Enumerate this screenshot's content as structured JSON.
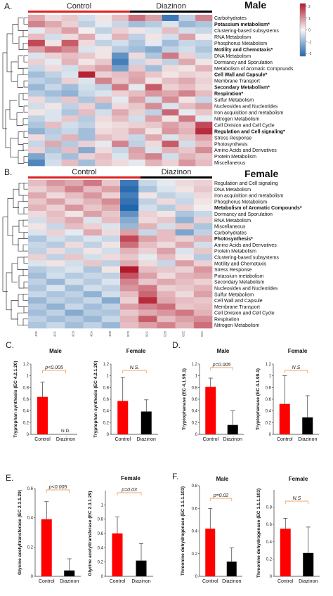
{
  "palette": {
    "neg": "#2166ac",
    "mid": "#f7f7f7",
    "pos": "#b2182b",
    "control_bar": "#ff0000",
    "diazinon_bar": "#000000",
    "sig_bracket": "#f4a460"
  },
  "colorbar_ticks": [
    "2",
    "1",
    "0",
    "-1",
    "-2"
  ],
  "chart_data": [
    {
      "type": "heatmap",
      "panel": "A.",
      "sex": "Male",
      "group_labels": [
        "Control",
        "Diazinon"
      ],
      "column_labels": [],
      "rows": [
        {
          "label": "Carbohydrates",
          "bold": false
        },
        {
          "label": "Potassium metabolism*",
          "bold": true
        },
        {
          "label": "Clustering-based subsystems",
          "bold": false
        },
        {
          "label": "RNA Metabolism",
          "bold": false
        },
        {
          "label": "Phosphorus Metabolism",
          "bold": false
        },
        {
          "label": "Motility and Chemotaxis*",
          "bold": true
        },
        {
          "label": "DNA Metabolism",
          "bold": false
        },
        {
          "label": "Dormancy and Sporulation",
          "bold": false
        },
        {
          "label": "Metabolism of Aromatic Compounds",
          "bold": false
        },
        {
          "label": "Cell Wall and Capsule*",
          "bold": true
        },
        {
          "label": "Membrane Transport",
          "bold": false
        },
        {
          "label": "Secondary Metabolism*",
          "bold": true
        },
        {
          "label": "Respiration*",
          "bold": true
        },
        {
          "label": "Sulfur Metabolism",
          "bold": false
        },
        {
          "label": "Nucleosides and Nucleotides",
          "bold": false
        },
        {
          "label": "Iron acquisition and metabolism",
          "bold": false
        },
        {
          "label": "Nitrogen Metabolism",
          "bold": false
        },
        {
          "label": "Cell Division and Cell Cycle",
          "bold": false
        },
        {
          "label": "Regulation and Cell signaling*",
          "bold": true
        },
        {
          "label": "Stress Response",
          "bold": false
        },
        {
          "label": "Photosynthesis",
          "bold": false
        },
        {
          "label": "Amino Acids and Derivatives",
          "bold": false
        },
        {
          "label": "Protein Metabolism",
          "bold": false
        },
        {
          "label": "Miscellaneous",
          "bold": false
        }
      ],
      "values": [
        [
          0.8,
          0.3,
          0.5,
          -0.4,
          0.2,
          0.6,
          1.4,
          0.9,
          -2.0,
          -0.6,
          1.2
        ],
        [
          1.2,
          0.8,
          0.4,
          -0.6,
          -0.2,
          -0.5,
          -0.9,
          -0.7,
          -0.3,
          -1.0,
          -0.8
        ],
        [
          -0.2,
          0.5,
          0.9,
          0.1,
          -0.6,
          0.4,
          0.2,
          -0.3,
          0.6,
          -0.4,
          -0.5
        ],
        [
          0.6,
          -0.4,
          0.3,
          0.8,
          -0.2,
          0.7,
          -0.6,
          0.2,
          -0.4,
          0.9,
          0.1
        ],
        [
          1.8,
          0.2,
          1.6,
          0.3,
          -0.6,
          -0.4,
          -0.8,
          -0.2,
          -0.9,
          -0.5,
          -0.6
        ],
        [
          0.9,
          1.4,
          1.1,
          -0.3,
          0.2,
          -0.7,
          -0.9,
          -1.2,
          -0.6,
          -0.4,
          -0.8
        ],
        [
          -0.3,
          0.4,
          0.6,
          0.5,
          0.2,
          -1.6,
          0.3,
          -0.8,
          1.3,
          0.4,
          -0.5
        ],
        [
          0.4,
          -0.2,
          0.7,
          0.2,
          0.5,
          -1.9,
          -0.5,
          0.3,
          -0.6,
          0.8,
          0.2
        ],
        [
          -0.5,
          0.3,
          -0.4,
          0.6,
          0.9,
          -1.4,
          0.5,
          -0.9,
          0.3,
          0.2,
          0.7
        ],
        [
          -0.9,
          -0.6,
          -0.3,
          2.2,
          0.4,
          0.6,
          0.8,
          0.5,
          0.2,
          0.4,
          0.3
        ],
        [
          -0.6,
          -0.8,
          0.4,
          -0.3,
          1.2,
          0.5,
          0.9,
          0.2,
          0.6,
          0.8,
          0.4
        ],
        [
          -1.0,
          -0.5,
          -0.9,
          -0.4,
          -0.6,
          1.3,
          -0.2,
          1.6,
          0.4,
          0.6,
          0.3
        ],
        [
          -0.7,
          -0.9,
          -1.1,
          -0.5,
          -0.3,
          0.4,
          0.6,
          1.0,
          0.8,
          1.2,
          0.6
        ],
        [
          0.3,
          -0.6,
          0.5,
          -0.8,
          0.6,
          -0.2,
          0.9,
          -0.4,
          1.1,
          0.2,
          -0.5
        ],
        [
          -0.4,
          0.2,
          -0.6,
          0.4,
          -0.9,
          0.3,
          0.5,
          1.1,
          -0.3,
          0.6,
          0.9
        ],
        [
          0.2,
          -0.3,
          -0.8,
          0.6,
          -0.4,
          0.8,
          0.4,
          -0.6,
          1.5,
          -0.2,
          0.5
        ],
        [
          -0.6,
          -0.3,
          0.5,
          -0.7,
          0.3,
          0.6,
          -0.4,
          0.9,
          0.2,
          1.3,
          -0.2
        ],
        [
          -0.8,
          0.6,
          -0.4,
          -0.6,
          0.2,
          0.3,
          0.4,
          0.5,
          0.9,
          0.6,
          1.8
        ],
        [
          -1.1,
          -0.7,
          -0.5,
          -0.9,
          0.3,
          0.4,
          0.8,
          0.2,
          1.0,
          0.7,
          2.1
        ],
        [
          0.3,
          -0.6,
          0.7,
          -0.9,
          0.6,
          0.4,
          -0.5,
          0.8,
          -0.3,
          0.5,
          0.9
        ],
        [
          -0.5,
          0.8,
          -0.7,
          0.4,
          -0.2,
          1.2,
          -0.6,
          0.3,
          1.6,
          -0.4,
          0.6
        ],
        [
          0.4,
          -0.8,
          0.6,
          -1.2,
          0.3,
          -0.5,
          0.9,
          -0.3,
          0.7,
          0.5,
          1.1
        ],
        [
          -1.3,
          -0.5,
          -0.9,
          0.4,
          0.6,
          -0.3,
          0.8,
          1.2,
          -0.4,
          0.7,
          0.5
        ],
        [
          -1.8,
          -0.4,
          0.6,
          -0.9,
          0.5,
          0.3,
          -0.2,
          0.7,
          0.4,
          1.0,
          0.6
        ]
      ]
    },
    {
      "type": "heatmap",
      "panel": "B.",
      "sex": "Female",
      "group_labels": [
        "Control",
        "Diazinon"
      ],
      "column_labels": [
        "42E",
        "42C",
        "42D",
        "42A",
        "42B",
        "02D",
        "02C",
        "02B",
        "02E",
        "02A"
      ],
      "rows": [
        {
          "label": "Regulation and Cell signaling",
          "bold": false
        },
        {
          "label": "DNA Metabolism",
          "bold": false
        },
        {
          "label": "Iron acquisition and metabolism",
          "bold": false
        },
        {
          "label": "Phosphorus Metabolism",
          "bold": false
        },
        {
          "label": "Metabolism of Aromatic Compounds*",
          "bold": true
        },
        {
          "label": "Dormancy and Sporulation",
          "bold": false
        },
        {
          "label": "RNA Metabolism",
          "bold": false
        },
        {
          "label": "Miscellaneous",
          "bold": false
        },
        {
          "label": "Carbohydrates",
          "bold": false
        },
        {
          "label": "Photosynthesis*",
          "bold": true
        },
        {
          "label": "Amino Acids and Derivatives",
          "bold": false
        },
        {
          "label": "Protein Metabolism",
          "bold": false
        },
        {
          "label": "Clustering-based subsystems",
          "bold": false
        },
        {
          "label": "Motility and Chemotaxis",
          "bold": false
        },
        {
          "label": "Stress Response",
          "bold": false
        },
        {
          "label": "Potassium metabolism",
          "bold": false
        },
        {
          "label": "Secondary Metabolism",
          "bold": false
        },
        {
          "label": "Nucleosides and Nucleotides",
          "bold": false
        },
        {
          "label": "Sulfur Metabolism",
          "bold": false
        },
        {
          "label": "Cell Wall and Capsule",
          "bold": false
        },
        {
          "label": "Membrane Transport",
          "bold": false
        },
        {
          "label": "Cell Division and Cell Cycle",
          "bold": false
        },
        {
          "label": "Respiration",
          "bold": false
        },
        {
          "label": "Nitrogen Metabolism",
          "bold": false
        }
      ],
      "values": [
        [
          0.6,
          1.0,
          0.8,
          1.3,
          0.5,
          -2.0,
          -0.5,
          -0.2,
          0.3,
          0.4
        ],
        [
          0.4,
          0.7,
          1.2,
          0.6,
          0.9,
          -2.2,
          -0.8,
          -0.3,
          0.2,
          0.5
        ],
        [
          0.8,
          0.3,
          0.6,
          1.0,
          0.4,
          -1.9,
          0.2,
          -0.6,
          -0.4,
          0.3
        ],
        [
          0.5,
          0.9,
          0.4,
          0.7,
          1.1,
          -2.1,
          -0.6,
          0.3,
          -0.5,
          0.2
        ],
        [
          0.7,
          0.4,
          1.0,
          0.5,
          0.8,
          -2.3,
          -0.4,
          -0.7,
          0.4,
          0.1
        ],
        [
          0.3,
          0.6,
          0.2,
          0.9,
          0.5,
          -1.6,
          0.4,
          0.2,
          -0.8,
          -0.5
        ],
        [
          -0.4,
          0.5,
          0.8,
          -0.3,
          0.6,
          -1.2,
          0.3,
          0.5,
          -1.1,
          0.4
        ],
        [
          0.2,
          -0.5,
          0.6,
          0.4,
          -0.3,
          -1.0,
          0.7,
          -0.4,
          0.5,
          -0.8
        ],
        [
          -0.3,
          0.4,
          -0.2,
          0.8,
          0.3,
          0.9,
          -0.5,
          0.6,
          -1.3,
          -0.6
        ],
        [
          -0.8,
          -0.4,
          -0.6,
          -0.3,
          -0.5,
          1.8,
          0.9,
          0.6,
          0.4,
          0.7
        ],
        [
          -0.5,
          -0.7,
          0.3,
          -0.6,
          0.2,
          1.4,
          0.6,
          0.3,
          0.8,
          -0.4
        ],
        [
          -0.6,
          0.3,
          -0.5,
          0.2,
          -0.4,
          0.7,
          0.4,
          0.9,
          -0.3,
          0.5
        ],
        [
          0.4,
          -0.6,
          0.5,
          -0.4,
          0.3,
          0.5,
          -0.2,
          0.6,
          0.2,
          -0.7
        ],
        [
          -0.3,
          0.2,
          -0.4,
          0.5,
          -0.6,
          0.8,
          0.3,
          -0.5,
          0.9,
          0.4
        ],
        [
          -0.7,
          -0.5,
          -0.3,
          -0.8,
          0.2,
          2.3,
          0.6,
          0.5,
          0.4,
          1.0
        ],
        [
          -0.9,
          -0.4,
          -0.7,
          -0.5,
          -0.6,
          1.7,
          0.9,
          0.3,
          0.7,
          0.8
        ],
        [
          -0.6,
          -1.0,
          -0.4,
          -0.7,
          -0.3,
          1.2,
          0.5,
          0.8,
          0.6,
          0.4
        ],
        [
          -0.8,
          -0.3,
          -0.9,
          -0.4,
          -0.6,
          1.0,
          1.3,
          0.4,
          0.5,
          0.7
        ],
        [
          -0.5,
          -0.8,
          -0.6,
          -1.1,
          -0.4,
          0.6,
          1.5,
          0.7,
          0.3,
          0.9
        ],
        [
          -1.0,
          -0.6,
          -0.8,
          -0.5,
          -1.2,
          0.4,
          2.1,
          0.8,
          0.6,
          0.5
        ],
        [
          -0.7,
          -1.1,
          -0.5,
          -0.9,
          -0.6,
          0.9,
          1.2,
          1.4,
          0.5,
          0.6
        ],
        [
          -0.9,
          -0.6,
          -1.2,
          -0.7,
          -0.8,
          0.5,
          0.8,
          1.0,
          1.3,
          0.7
        ],
        [
          -0.6,
          -0.9,
          -0.7,
          -1.0,
          -0.5,
          0.7,
          1.6,
          0.6,
          0.9,
          1.1
        ],
        [
          -0.8,
          -0.5,
          -0.9,
          -0.6,
          -1.0,
          0.6,
          0.9,
          1.2,
          0.7,
          1.4
        ]
      ]
    },
    {
      "type": "bar",
      "panel": "C.",
      "title": "Male",
      "ylabel": "Tryptophan synthesis (EC 4.2.1.20)",
      "ylim": [
        0,
        1.2
      ],
      "yticks": [
        "0",
        "0.2",
        "0.4",
        "0.6",
        "0.8",
        "1",
        "1.2"
      ],
      "categories": [
        "Control",
        "Diazinon"
      ],
      "values": [
        0.64,
        0.0
      ],
      "errors": [
        0.25,
        0.0
      ],
      "bar_labels": [
        "",
        "N.D."
      ],
      "significance": "p<0.005"
    },
    {
      "type": "bar",
      "panel": "",
      "title": "Female",
      "ylabel": "Tryptophan synthesis (EC 4.2.1.20)",
      "ylim": [
        0,
        1.2
      ],
      "yticks": [
        "0",
        "0.2",
        "0.4",
        "0.6",
        "0.8",
        "1",
        "1.2"
      ],
      "categories": [
        "Control",
        "Diazinon"
      ],
      "values": [
        0.57,
        0.39
      ],
      "errors": [
        0.4,
        0.2
      ],
      "bar_labels": [
        "",
        ""
      ],
      "significance": "N.S."
    },
    {
      "type": "bar",
      "panel": "D.",
      "title": "Male",
      "ylabel": "Tryptophanase (EC 4.1.99.1)",
      "ylim": [
        0,
        1.2
      ],
      "yticks": [
        "0",
        "0.2",
        "0.4",
        "0.6",
        "0.8",
        "1",
        "1.2"
      ],
      "categories": [
        "Control",
        "Diazinon"
      ],
      "values": [
        0.81,
        0.16
      ],
      "errors": [
        0.15,
        0.24
      ],
      "bar_labels": [
        "",
        ""
      ],
      "significance": "p=0.005"
    },
    {
      "type": "bar",
      "panel": "",
      "title": "Female",
      "ylabel": "Tryptophanase (EC 4.1.99.1)",
      "ylim": [
        0,
        1.2
      ],
      "yticks": [
        "0",
        "0.2",
        "0.4",
        "0.6",
        "0.8",
        "1",
        "1.2"
      ],
      "categories": [
        "Control",
        "Diazinon"
      ],
      "values": [
        0.52,
        0.29
      ],
      "errors": [
        0.48,
        0.37
      ],
      "bar_labels": [
        "",
        ""
      ],
      "significance": "N.S"
    },
    {
      "type": "bar",
      "panel": "E.",
      "title": "",
      "ylabel": "Glycine acetyltransferase (EC 2.3.1.29)",
      "ylim": [
        0,
        0.6
      ],
      "yticks": [
        "0",
        "0.2",
        "0.4",
        "0.6"
      ],
      "categories": [
        "Control",
        "Diazinon"
      ],
      "values": [
        0.39,
        0.04
      ],
      "errors": [
        0.12,
        0.08
      ],
      "bar_labels": [
        "",
        ""
      ],
      "significance": "p<0.005"
    },
    {
      "type": "bar",
      "panel": "",
      "title": "Female",
      "ylabel": "Glycine acetyltransferase (EC 2.3.1.29)",
      "ylim": [
        0,
        1.2
      ],
      "yticks": [
        "0",
        "0.2",
        "0.4",
        "0.6",
        "0.8",
        "1"
      ],
      "categories": [
        "Control",
        "Diazinon"
      ],
      "values": [
        0.6,
        0.22
      ],
      "errors": [
        0.23,
        0.24
      ],
      "bar_labels": [
        "",
        ""
      ],
      "significance": "p=0.03"
    },
    {
      "type": "bar",
      "panel": "F.",
      "title": "Male",
      "ylabel": "Threonine dehydrogenase (EC 1.1.1.103)",
      "ylim": [
        0,
        0.8
      ],
      "yticks": [
        "0",
        "0.2",
        "0.4",
        "0.6",
        "0.8"
      ],
      "categories": [
        "Control",
        "Diazinon"
      ],
      "values": [
        0.42,
        0.13
      ],
      "errors": [
        0.18,
        0.12
      ],
      "bar_labels": [
        "",
        ""
      ],
      "significance": "p=0.02"
    },
    {
      "type": "bar",
      "panel": "",
      "title": "Female",
      "ylabel": "Threonine dehydrogenase (EC 1.1.1.103)",
      "ylim": [
        0,
        1.0
      ],
      "yticks": [
        "0",
        "0.2",
        "0.4",
        "0.6",
        "0.8"
      ],
      "categories": [
        "Control",
        "Diazinon"
      ],
      "values": [
        0.55,
        0.27
      ],
      "errors": [
        0.12,
        0.3
      ],
      "bar_labels": [
        "",
        ""
      ],
      "significance": "N.S"
    }
  ]
}
